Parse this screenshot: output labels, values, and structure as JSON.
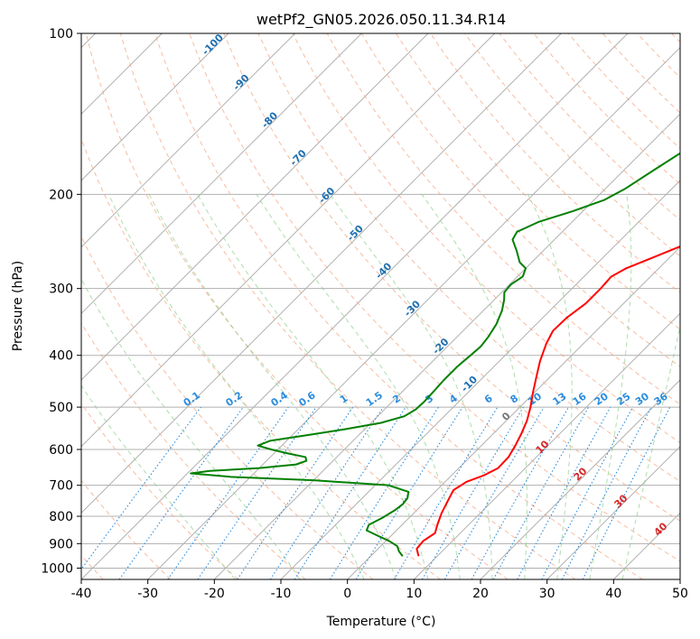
{
  "chart_data": {
    "type": "line",
    "title": "wetPf2_GN05.2026.050.11.34.R14",
    "xlabel": "Temperature (°C)",
    "ylabel": "Pressure (hPa)",
    "xlim": [
      -40,
      50
    ],
    "ylim": [
      1050,
      100
    ],
    "y_scale": "log",
    "grid": true,
    "x_ticks": [
      -40,
      -30,
      -20,
      -10,
      0,
      10,
      20,
      30,
      40,
      50
    ],
    "y_ticks": [
      1000,
      900,
      800,
      700,
      600,
      500,
      400,
      300,
      200,
      100
    ],
    "isotherm_spacing_c": 10,
    "series": [
      {
        "color": "#ff0000",
        "points": [
          {
            "p": 950,
            "t": 7.2
          },
          {
            "p": 920,
            "t": 5.8
          },
          {
            "p": 890,
            "t": 5.6
          },
          {
            "p": 860,
            "t": 6.2
          },
          {
            "p": 830,
            "t": 5.3
          },
          {
            "p": 790,
            "t": 4.2
          },
          {
            "p": 750,
            "t": 3.3
          },
          {
            "p": 715,
            "t": 2.5
          },
          {
            "p": 690,
            "t": 3.2
          },
          {
            "p": 670,
            "t": 4.9
          },
          {
            "p": 650,
            "t": 5.9
          },
          {
            "p": 620,
            "t": 5.8
          },
          {
            "p": 590,
            "t": 5.1
          },
          {
            "p": 560,
            "t": 4.2
          },
          {
            "p": 530,
            "t": 3.1
          },
          {
            "p": 500,
            "t": 1.6
          },
          {
            "p": 470,
            "t": -0.2
          },
          {
            "p": 440,
            "t": -2.0
          },
          {
            "p": 410,
            "t": -3.9
          },
          {
            "p": 380,
            "t": -5.6
          },
          {
            "p": 360,
            "t": -6.5
          },
          {
            "p": 340,
            "t": -6.4
          },
          {
            "p": 320,
            "t": -5.7
          },
          {
            "p": 300,
            "t": -5.7
          },
          {
            "p": 285,
            "t": -5.9
          },
          {
            "p": 275,
            "t": -4.9
          },
          {
            "p": 260,
            "t": -2.0
          },
          {
            "p": 245,
            "t": 1.0
          },
          {
            "p": 230,
            "t": 4.0
          },
          {
            "p": 215,
            "t": 6.5
          },
          {
            "p": 200,
            "t": 8.5
          },
          {
            "p": 185,
            "t": 10.5
          },
          {
            "p": 170,
            "t": 12.5
          },
          {
            "p": 160,
            "t": 14.7
          },
          {
            "p": 150,
            "t": 17.3
          },
          {
            "p": 140,
            "t": 19.5
          },
          {
            "p": 130,
            "t": 21.0
          },
          {
            "p": 120,
            "t": 22.3
          },
          {
            "p": 113,
            "t": 23.5
          },
          {
            "p": 107,
            "t": 25.0
          },
          {
            "p": 100,
            "t": 26.8
          }
        ]
      },
      {
        "color": "#008000",
        "points": [
          {
            "p": 950,
            "t": 4.8
          },
          {
            "p": 930,
            "t": 3.5
          },
          {
            "p": 910,
            "t": 2.5
          },
          {
            "p": 890,
            "t": 0.5
          },
          {
            "p": 870,
            "t": -2.0
          },
          {
            "p": 850,
            "t": -4.5
          },
          {
            "p": 830,
            "t": -5.0
          },
          {
            "p": 805,
            "t": -4.0
          },
          {
            "p": 780,
            "t": -3.3
          },
          {
            "p": 760,
            "t": -3.0
          },
          {
            "p": 740,
            "t": -3.2
          },
          {
            "p": 720,
            "t": -4.0
          },
          {
            "p": 700,
            "t": -8.0
          },
          {
            "p": 685,
            "t": -20.0
          },
          {
            "p": 675,
            "t": -33.0
          },
          {
            "p": 665,
            "t": -39.5
          },
          {
            "p": 658,
            "t": -37.0
          },
          {
            "p": 650,
            "t": -30.0
          },
          {
            "p": 640,
            "t": -25.0
          },
          {
            "p": 630,
            "t": -24.0
          },
          {
            "p": 620,
            "t": -24.7
          },
          {
            "p": 610,
            "t": -28.0
          },
          {
            "p": 600,
            "t": -31.0
          },
          {
            "p": 590,
            "t": -33.6
          },
          {
            "p": 578,
            "t": -32.5
          },
          {
            "p": 565,
            "t": -28.0
          },
          {
            "p": 550,
            "t": -23.0
          },
          {
            "p": 535,
            "t": -18.5
          },
          {
            "p": 520,
            "t": -16.0
          },
          {
            "p": 505,
            "t": -15.3
          },
          {
            "p": 490,
            "t": -15.2
          },
          {
            "p": 470,
            "t": -15.3
          },
          {
            "p": 445,
            "t": -15.5
          },
          {
            "p": 420,
            "t": -15.5
          },
          {
            "p": 400,
            "t": -15.2
          },
          {
            "p": 385,
            "t": -15.0
          },
          {
            "p": 370,
            "t": -15.3
          },
          {
            "p": 350,
            "t": -16.0
          },
          {
            "p": 330,
            "t": -17.2
          },
          {
            "p": 315,
            "t": -18.5
          },
          {
            "p": 305,
            "t": -19.6
          },
          {
            "p": 295,
            "t": -19.8
          },
          {
            "p": 285,
            "t": -19.2
          },
          {
            "p": 275,
            "t": -20.0
          },
          {
            "p": 268,
            "t": -21.8
          },
          {
            "p": 255,
            "t": -24.0
          },
          {
            "p": 243,
            "t": -26.3
          },
          {
            "p": 235,
            "t": -26.8
          },
          {
            "p": 225,
            "t": -25.0
          },
          {
            "p": 215,
            "t": -21.5
          },
          {
            "p": 205,
            "t": -18.5
          },
          {
            "p": 195,
            "t": -17.0
          },
          {
            "p": 180,
            "t": -15.5
          },
          {
            "p": 165,
            "t": -13.8
          },
          {
            "p": 150,
            "t": -11.5
          },
          {
            "p": 135,
            "t": -9.0
          },
          {
            "p": 122,
            "t": -5.5
          },
          {
            "p": 112,
            "t": -2.0
          },
          {
            "p": 105,
            "t": 0.5
          },
          {
            "p": 100,
            "t": 2.8
          }
        ]
      }
    ],
    "dry_adiabat_labels": [
      "-100",
      "-90",
      "-80",
      "-70",
      "-60",
      "-50",
      "-40",
      "-30",
      "-20",
      "-10"
    ],
    "mixing_ratio_labels": [
      "0.1",
      "0.2",
      "0.4",
      "0.6",
      "1",
      "1.5",
      "2",
      "3",
      "4",
      "6",
      "8",
      "10",
      "13",
      "16",
      "20",
      "25",
      "30",
      "36"
    ],
    "moist_adiabat_labels": [
      "0",
      "10",
      "20",
      "30",
      "40"
    ],
    "colors": {
      "isotherm": "#b0b0b0",
      "dry_adiabat": "#f4a582",
      "moist_adiabat": "#8ccf8c",
      "mixing_ratio": "#2b8cde",
      "dry_label": "#1f6fb2",
      "moist_label": "#d62728",
      "zero_label": "#777777"
    }
  }
}
